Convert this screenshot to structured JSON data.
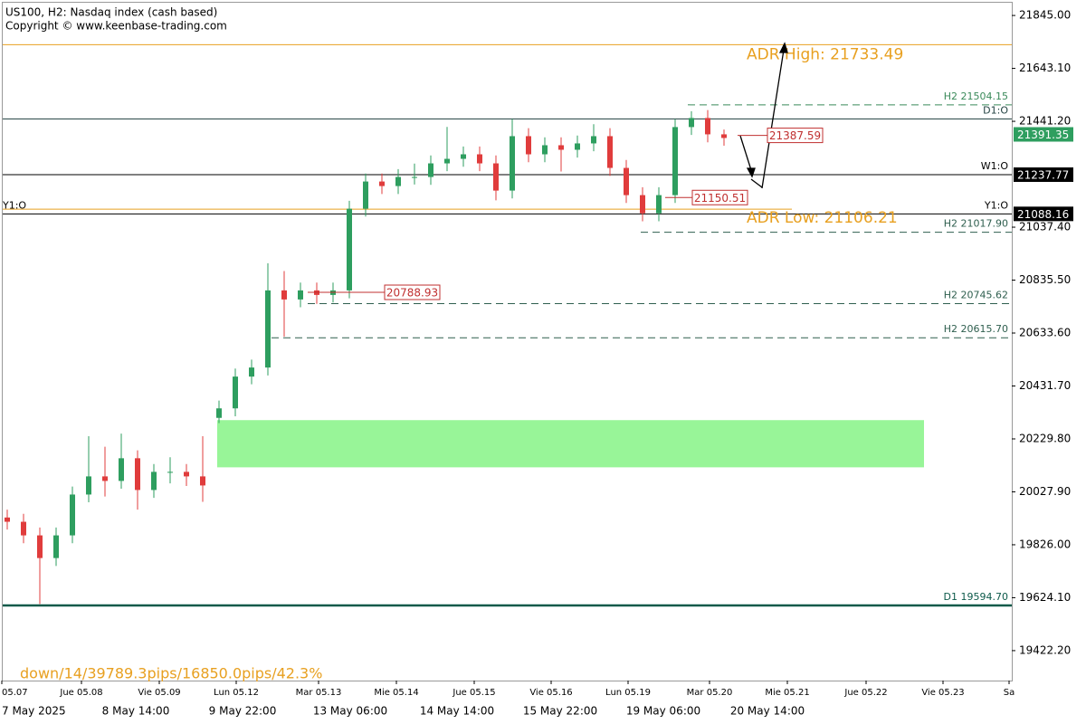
{
  "chart_data": {
    "type": "candlestick",
    "title": "US100, H2:  Nasdaq index (cash based)",
    "subtitle": "Copyright © www.keenbase-trading.com",
    "footer": "down/14/39789.3pips/16850.0pips/42.3%",
    "up_color": "#2e9e5f",
    "down_color": "#e03c3c",
    "ylim": [
      19308,
      21904
    ],
    "yticks": [
      {
        "value": 21845,
        "label": "21845.00"
      },
      {
        "value": 21643.1,
        "label": "21643.10"
      },
      {
        "value": 21441.2,
        "label": "21441.20"
      },
      {
        "value": 21037.4,
        "label": "21037.40"
      },
      {
        "value": 20835.5,
        "label": "20835.50"
      },
      {
        "value": 20633.6,
        "label": "20633.60"
      },
      {
        "value": 20431.7,
        "label": "20431.70"
      },
      {
        "value": 20229.8,
        "label": "20229.80"
      },
      {
        "value": 20027.9,
        "label": "20027.90"
      },
      {
        "value": 19826,
        "label": "19826.00"
      },
      {
        "value": 19624.1,
        "label": "19624.10"
      },
      {
        "value": 19422.2,
        "label": "19422.20"
      }
    ],
    "x_day_labels": [
      "05.07",
      "Jue 05.08",
      "Vie 05.09",
      "Lun 05.12",
      "Mar 05.13",
      "Mie 05.14",
      "Jue 05.15",
      "Vie 05.16",
      "Lun 05.19",
      "Mar 05.20",
      "Mie 05.21",
      "Jue 05.22",
      "Vie 05.23",
      "Sa"
    ],
    "x_time_labels": [
      "7 May 2025",
      "8 May 14:00",
      "9 May 22:00",
      "13 May 06:00",
      "14 May 14:00",
      "15 May 22:00",
      "19 May 06:00",
      "20 May 14:00"
    ],
    "open": [
      19930,
      19913.7,
      19861.8,
      19775.3,
      19861.8,
      20017.6,
      20086.8,
      20069.5,
      20156.0,
      20034.9,
      20104.1,
      20104.1,
      20086.8,
      20310,
      20346.3,
      20467.5,
      20502.1,
      20796.3,
      20761.7,
      20796.3,
      20779.0,
      20796.3,
      21107.8,
      21211.6,
      21194.3,
      21228.9,
      21228.9,
      21280.8,
      21298.1,
      21315.4,
      21280.8,
      21177.0,
      21384.6,
      21315.4,
      21350.0,
      21332.7,
      21357.0,
      21384.6,
      21263.5,
      21159.7,
      21090.5,
      21159.7,
      21419.3,
      21453.9,
      21391.6
    ],
    "high": [
      19960,
      19944,
      19892,
      19892,
      20048,
      20240,
      20200,
      20250,
      20186,
      20134,
      20160,
      20134,
      20240,
      20376,
      20498,
      20532,
      20900,
      20870,
      20826,
      20826,
      20826,
      21138,
      21242,
      21242,
      21259,
      21280,
      21311,
      21420,
      21345,
      21345,
      21311,
      21450,
      21415,
      21380,
      21380,
      21387,
      21430,
      21415,
      21294,
      21190,
      21190,
      21449,
      21480,
      21484,
      21410
    ],
    "low": [
      19884,
      19832,
      19600,
      19745,
      19832,
      19988,
      20010,
      20040,
      19960,
      20005,
      20060,
      20050,
      19990,
      20290,
      20316,
      20438,
      20472,
      20620,
      20732,
      20745,
      20750,
      20766,
      21078,
      21164,
      21164,
      21200,
      21199,
      21251,
      21268,
      21251,
      21140,
      21147,
      21285,
      21285,
      21250,
      21303,
      21327,
      21233,
      21130,
      21060,
      21060,
      21130,
      21389,
      21361,
      21348
    ],
    "close": [
      19913.7,
      19861.8,
      19775.3,
      19861.8,
      20017.6,
      20086.8,
      20069.5,
      20156.0,
      20034.9,
      20104.1,
      20104.1,
      20086.8,
      20052.2,
      20346.3,
      20467.5,
      20502.1,
      20796.3,
      20761.7,
      20796.3,
      20779.0,
      20796.3,
      21107.8,
      21211.6,
      21194.3,
      21228.9,
      21228.9,
      21280.8,
      21298.1,
      21315.4,
      21280.8,
      21177.0,
      21384.6,
      21315.4,
      21350.0,
      21332.7,
      21357.0,
      21384.6,
      21263.5,
      21159.7,
      21090.5,
      21159.7,
      21419.3,
      21453.9,
      21391.6,
      21377.7
    ],
    "levels": [
      {
        "name": "H2 21504.15",
        "value": 21504.15,
        "color": "#3a8a5a",
        "dashed": true
      },
      {
        "name": "D1:O",
        "value": 21450.4,
        "color": "#1f3f3f",
        "dashed": false
      },
      {
        "name": "W1:O",
        "value": 21237.77,
        "color": "#000000",
        "dashed": false
      },
      {
        "name": "Y1:O",
        "value": 21088.16,
        "color": "#000000",
        "dashed": false
      },
      {
        "name": "H2 21017.90",
        "value": 21017.9,
        "color": "#2f5f4f",
        "dashed": true
      },
      {
        "name": "H2 20745.62",
        "value": 20745.62,
        "color": "#2f5f4f",
        "dashed": true
      },
      {
        "name": "H2 20615.70",
        "value": 20615.7,
        "color": "#2f5f4f",
        "dashed": true
      },
      {
        "name": "D1 19594.70",
        "value": 19594.7,
        "color": "#0d5a4a",
        "dashed": false
      }
    ],
    "adr": [
      {
        "name": "ADR High: 21733.49",
        "value": 21733.49,
        "color": "#e8a020"
      },
      {
        "name": "ADR Low: 21106.21",
        "value": 21106.21,
        "color": "#e8a020"
      }
    ],
    "price_tags": [
      21387.59,
      21150.51,
      20788.93
    ],
    "axis_boxes": [
      {
        "value": 21391.35,
        "color": "#2e9e5f"
      },
      {
        "value": 21237.77,
        "color": "#000000"
      },
      {
        "value": 21088.16,
        "color": "#000000"
      }
    ],
    "zone": {
      "top": 20301.4,
      "bottom": 20121.4,
      "color": "#98f598"
    }
  }
}
